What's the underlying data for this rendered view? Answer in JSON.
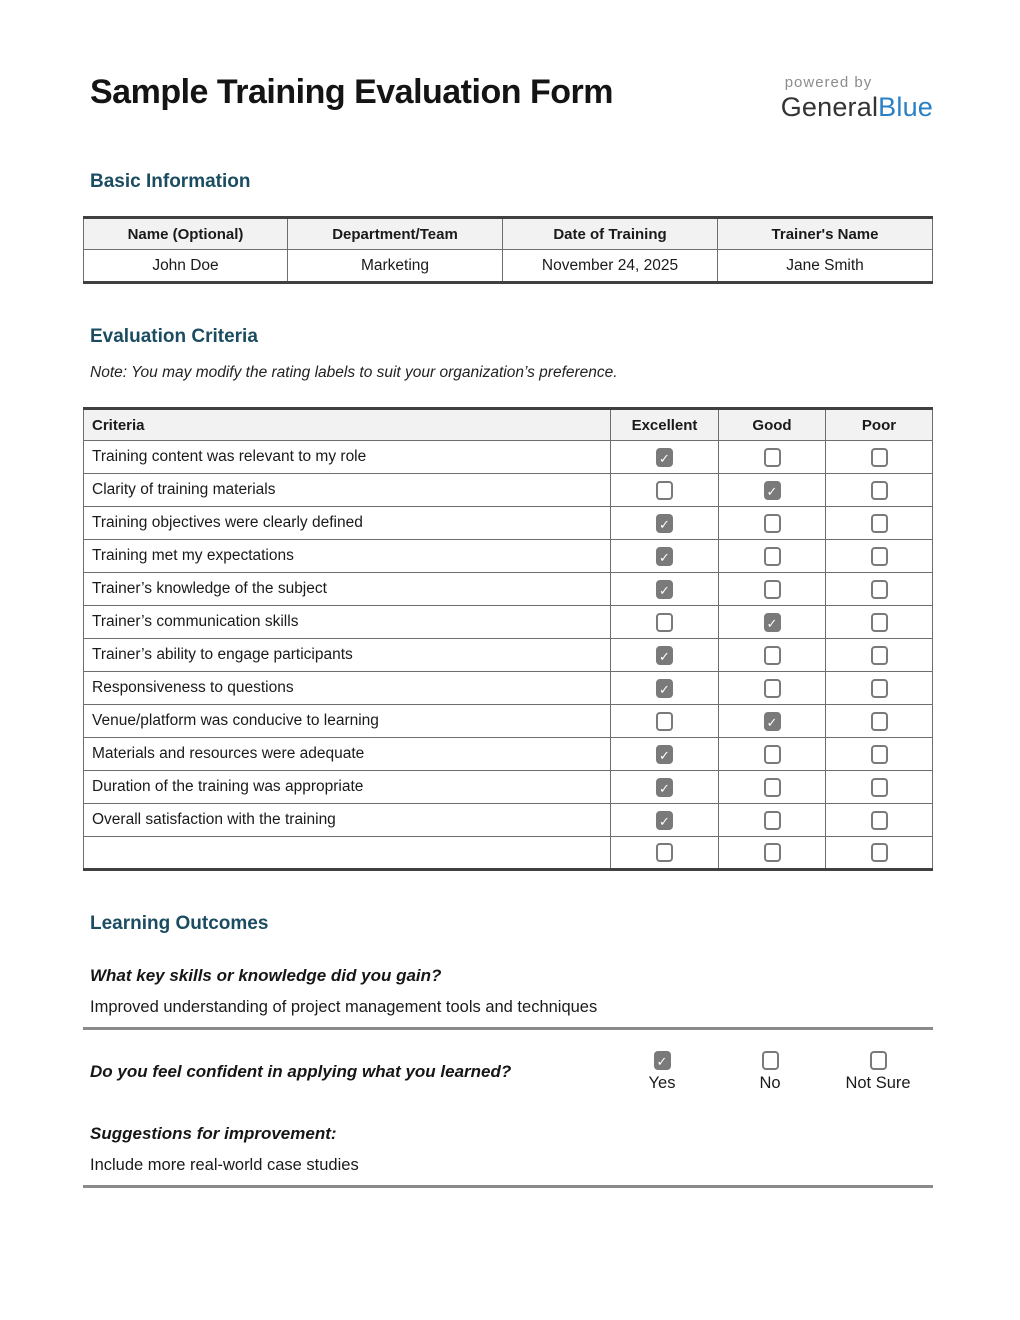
{
  "header": {
    "title": "Sample Training Evaluation Form",
    "logo": {
      "powered_by": "powered by",
      "brand_general": "General",
      "brand_blue": "Blue"
    }
  },
  "colors": {
    "section_heading": "#1b4c61",
    "brand_blue": "#2980c4",
    "checkbox_gray": "#7a7a7a",
    "table_header_bg": "#f2f2f2"
  },
  "icons": {
    "checkmark": "✓"
  },
  "basic_info": {
    "heading": "Basic Information",
    "columns": [
      "Name (Optional)",
      "Department/Team",
      "Date of Training",
      "Trainer's Name"
    ],
    "values": [
      "John Doe",
      "Marketing",
      "November 24, 2025",
      "Jane Smith"
    ]
  },
  "evaluation": {
    "heading": "Evaluation Criteria",
    "note": "Note: You may modify the rating labels to suit your organization’s preference.",
    "columns": [
      "Criteria",
      "Excellent",
      "Good",
      "Poor"
    ],
    "rating_options": [
      "Excellent",
      "Good",
      "Poor"
    ],
    "rows": [
      {
        "criteria": "Training content was relevant to my role",
        "rating": "Excellent"
      },
      {
        "criteria": "Clarity of training materials",
        "rating": "Good"
      },
      {
        "criteria": "Training objectives were clearly defined",
        "rating": "Excellent"
      },
      {
        "criteria": "Training met my expectations",
        "rating": "Excellent"
      },
      {
        "criteria": "Trainer’s knowledge of the subject",
        "rating": "Excellent"
      },
      {
        "criteria": "Trainer’s communication skills",
        "rating": "Good"
      },
      {
        "criteria": "Trainer’s ability to engage participants",
        "rating": "Excellent"
      },
      {
        "criteria": "Responsiveness to questions",
        "rating": "Excellent"
      },
      {
        "criteria": "Venue/platform was conducive to learning",
        "rating": "Good"
      },
      {
        "criteria": "Materials and resources were adequate",
        "rating": "Excellent"
      },
      {
        "criteria": "Duration of the training was appropriate",
        "rating": "Excellent"
      },
      {
        "criteria": "Overall satisfaction with the training",
        "rating": "Excellent"
      },
      {
        "criteria": "",
        "rating": ""
      }
    ]
  },
  "learning_outcomes": {
    "heading": "Learning Outcomes",
    "q1": {
      "question": "What key skills or knowledge did you gain?",
      "answer": "Improved understanding of project management tools and techniques"
    },
    "q2": {
      "question": "Do you feel confident in applying what you learned?",
      "options": [
        {
          "label": "Yes",
          "checked": true
        },
        {
          "label": "No",
          "checked": false
        },
        {
          "label": "Not Sure",
          "checked": false
        }
      ]
    },
    "q3": {
      "question": "Suggestions for improvement:",
      "answer": "Include more real-world case studies"
    }
  }
}
